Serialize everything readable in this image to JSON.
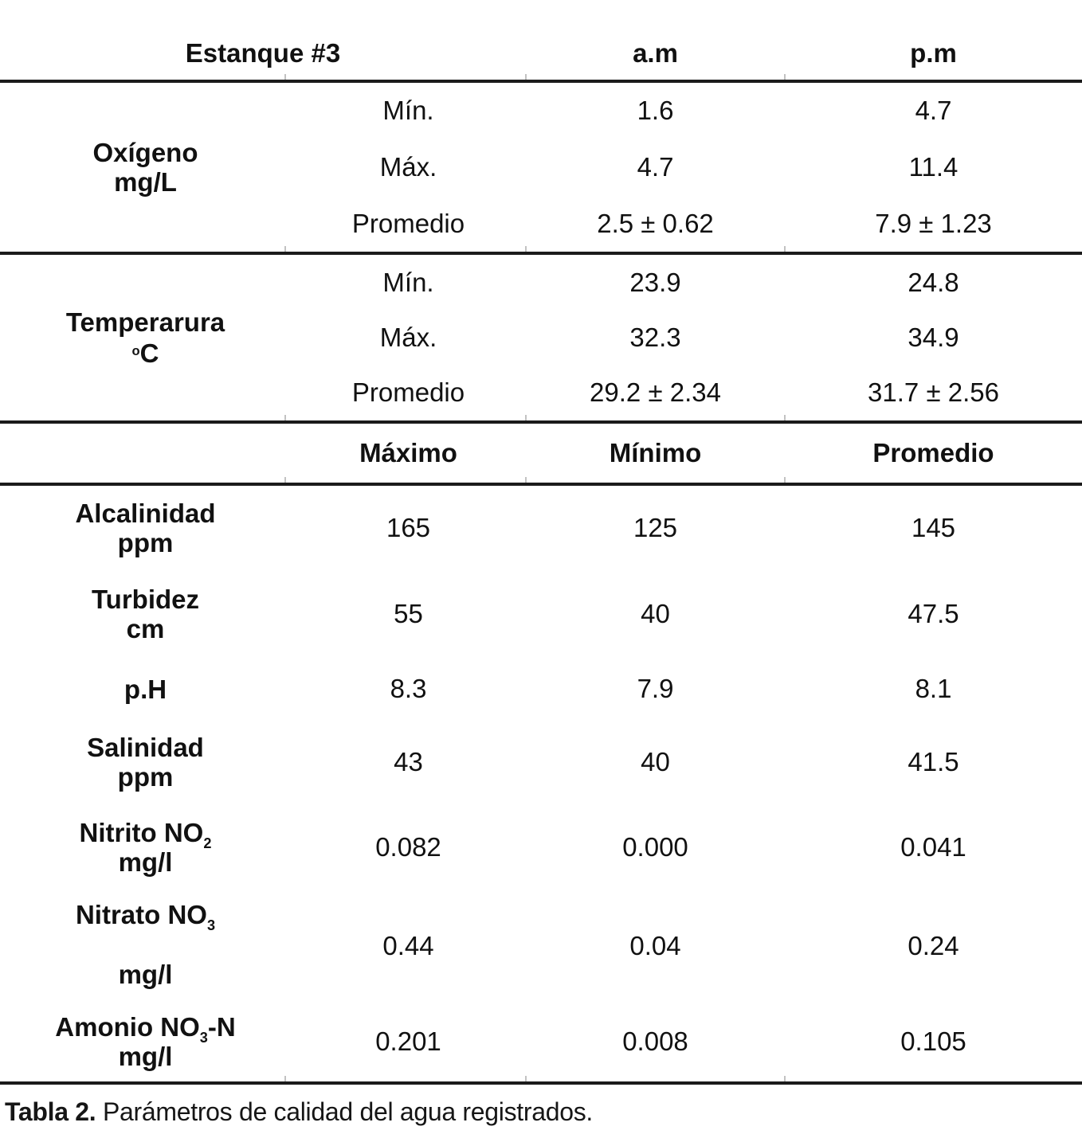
{
  "header_row_1": {
    "pond": "Estanque #3",
    "am": "a.m",
    "pm": "p.m"
  },
  "sections": [
    {
      "name": "Oxígeno",
      "unit": "mg/L",
      "rows": [
        {
          "stat": "Mín.",
          "am": "1.6",
          "pm": "4.7"
        },
        {
          "stat": "Máx.",
          "am": "4.7",
          "pm": "11.4"
        },
        {
          "stat": "Promedio",
          "am": "2.5 ± 0.62",
          "pm": "7.9 ± 1.23"
        }
      ]
    },
    {
      "name": "Temperarura",
      "unit_degree": "o",
      "unit": "C",
      "rows": [
        {
          "stat": "Mín.",
          "am": "23.9",
          "pm": "24.8"
        },
        {
          "stat": "Máx.",
          "am": "32.3",
          "pm": "34.9"
        },
        {
          "stat": "Promedio",
          "am": "29.2 ± 2.34",
          "pm": "31.7 ± 2.56"
        }
      ]
    }
  ],
  "header_row_2": {
    "max": "Máximo",
    "min": "Mínimo",
    "avg": "Promedio"
  },
  "parameters": [
    {
      "name": "Alcalinidad",
      "unit": "ppm",
      "max": "165",
      "min": "125",
      "avg": "145"
    },
    {
      "name": "Turbidez",
      "unit": "cm",
      "max": "55",
      "min": "40",
      "avg": "47.5"
    },
    {
      "name": "p.H",
      "unit": "",
      "max": "8.3",
      "min": "7.9",
      "avg": "8.1"
    },
    {
      "name": "Salinidad",
      "unit": "ppm",
      "max": "43",
      "min": "40",
      "avg": "41.5"
    },
    {
      "name": "Nitrito NO",
      "name_sub": "2",
      "unit": "mg/l",
      "max": "0.082",
      "min": "0.000",
      "avg": "0.041"
    },
    {
      "name": "Nitrato NO",
      "name_sub": "3",
      "unit": "mg/l",
      "max": "0.44",
      "min": "0.04",
      "avg": "0.24"
    },
    {
      "name": "Amonio NO",
      "name_sub": "3",
      "name_suffix": "-N",
      "unit": "mg/l",
      "max": "0.201",
      "min": "0.008",
      "avg": "0.105"
    }
  ],
  "caption": {
    "label": "Tabla 2.",
    "text": " Parámetros de calidad del agua registrados."
  }
}
